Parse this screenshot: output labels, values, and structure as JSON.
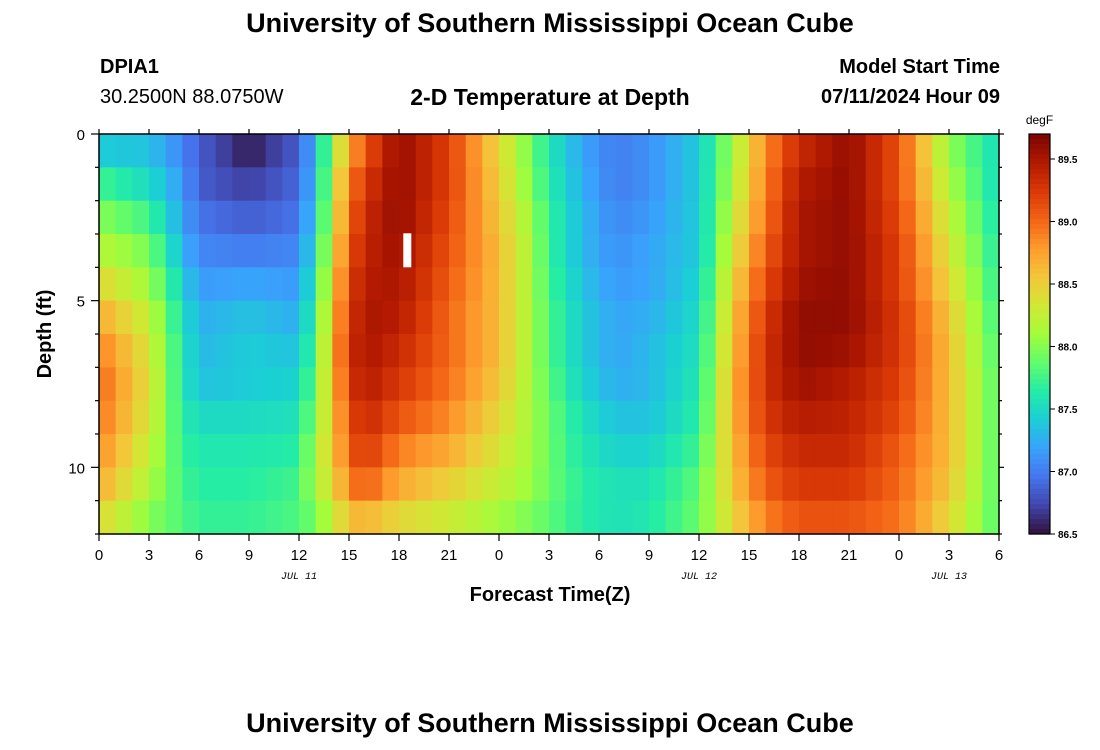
{
  "header": {
    "title": "University of Southern Mississippi Ocean Cube",
    "station_id": "DPIA1",
    "station_coords": "30.2500N  88.0750W",
    "plot_title": "2-D Temperature at Depth",
    "start_label": "Model Start Time",
    "start_value": "07/11/2024 Hour 09"
  },
  "footer": {
    "title": "University of Southern Mississippi Ocean Cube"
  },
  "chart_data": {
    "type": "heatmap",
    "title": "2-D Temperature at Depth",
    "xlabel": "Forecast Time(Z)",
    "ylabel": "Depth (ft)",
    "x_hours": [
      0,
      3,
      6,
      9,
      12,
      15,
      18,
      21,
      24,
      27,
      30,
      33,
      36,
      39,
      42,
      45,
      48,
      51,
      54
    ],
    "x_tick_labels": [
      "0",
      "3",
      "6",
      "9",
      "12",
      "15",
      "18",
      "21",
      "0",
      "3",
      "6",
      "9",
      "12",
      "15",
      "18",
      "21",
      "0",
      "3",
      "6"
    ],
    "date_labels": [
      {
        "label": "JUL 11",
        "hour": 12
      },
      {
        "label": "JUL 12",
        "hour": 36
      },
      {
        "label": "JUL 13",
        "hour": 51
      }
    ],
    "y_depths_ft": [
      0,
      1,
      2,
      3,
      4,
      5,
      6,
      7,
      8,
      9,
      10,
      11,
      12
    ],
    "y_tick_labels": [
      "0",
      "5",
      "10"
    ],
    "y_tick_values": [
      0,
      5,
      10
    ],
    "ylim": [
      0,
      12
    ],
    "xlim": [
      0,
      54
    ],
    "time_columns": [
      0,
      3,
      5,
      6,
      9,
      12,
      13,
      14,
      15,
      16,
      18,
      21,
      24,
      26,
      27,
      29,
      31,
      33,
      36,
      38,
      40,
      42,
      45,
      48,
      51,
      54
    ],
    "temperature_degF": [
      [
        87.2,
        87.3,
        87.0,
        86.9,
        86.5,
        86.8,
        87.3,
        88.0,
        88.6,
        89.0,
        89.6,
        89.2,
        88.4,
        87.9,
        87.6,
        87.2,
        87.0,
        87.1,
        87.4,
        88.1,
        88.8,
        89.3,
        89.6,
        89.1,
        88.0,
        87.5
      ],
      [
        87.6,
        87.4,
        87.1,
        86.8,
        86.6,
        86.9,
        87.3,
        88.2,
        88.8,
        89.2,
        89.6,
        89.2,
        88.5,
        87.9,
        87.6,
        87.2,
        87.0,
        87.1,
        87.4,
        88.1,
        88.9,
        89.4,
        89.6,
        89.1,
        88.1,
        87.5
      ],
      [
        87.9,
        87.6,
        87.2,
        86.9,
        86.8,
        86.9,
        87.4,
        88.2,
        89.0,
        89.3,
        89.6,
        89.2,
        88.5,
        88.0,
        87.7,
        87.3,
        87.0,
        87.1,
        87.4,
        88.2,
        88.9,
        89.5,
        89.6,
        89.1,
        88.2,
        87.5
      ],
      [
        88.1,
        87.9,
        87.2,
        87.0,
        86.9,
        87.0,
        87.5,
        88.3,
        89.0,
        89.4,
        89.6,
        89.1,
        88.6,
        88.1,
        87.7,
        87.3,
        87.1,
        87.2,
        87.4,
        88.3,
        89.0,
        89.5,
        89.6,
        89.2,
        88.3,
        87.6
      ],
      [
        88.3,
        88.0,
        87.4,
        87.1,
        87.1,
        87.1,
        87.6,
        88.4,
        89.2,
        89.4,
        89.5,
        89.1,
        88.6,
        88.1,
        87.7,
        87.3,
        87.1,
        87.2,
        87.4,
        88.4,
        89.1,
        89.5,
        89.6,
        89.2,
        88.4,
        87.6
      ],
      [
        88.6,
        88.2,
        87.5,
        87.2,
        87.3,
        87.2,
        87.7,
        88.5,
        89.2,
        89.5,
        89.5,
        89.0,
        88.6,
        88.1,
        87.8,
        87.4,
        87.2,
        87.2,
        87.5,
        88.5,
        89.2,
        89.6,
        89.6,
        89.2,
        88.5,
        87.7
      ],
      [
        88.8,
        88.3,
        87.6,
        87.3,
        87.4,
        87.3,
        87.8,
        88.6,
        89.3,
        89.5,
        89.4,
        89.0,
        88.6,
        88.1,
        87.8,
        87.4,
        87.2,
        87.3,
        87.5,
        88.6,
        89.3,
        89.6,
        89.6,
        89.3,
        88.6,
        87.7
      ],
      [
        89.0,
        88.4,
        87.6,
        87.3,
        87.4,
        87.4,
        87.9,
        88.6,
        89.3,
        89.5,
        89.3,
        89.0,
        88.6,
        88.1,
        87.8,
        87.4,
        87.2,
        87.3,
        87.6,
        88.6,
        89.3,
        89.6,
        89.5,
        89.2,
        88.6,
        87.8
      ],
      [
        89.0,
        88.4,
        87.6,
        87.4,
        87.4,
        87.5,
        88.0,
        88.5,
        89.2,
        89.4,
        89.2,
        88.9,
        88.5,
        88.1,
        87.9,
        87.5,
        87.3,
        87.3,
        87.6,
        88.7,
        89.3,
        89.5,
        89.4,
        89.2,
        88.6,
        87.8
      ],
      [
        88.9,
        88.3,
        87.7,
        87.6,
        87.6,
        87.6,
        88.1,
        88.5,
        89.1,
        89.3,
        89.0,
        88.8,
        88.4,
        88.1,
        87.9,
        87.6,
        87.4,
        87.4,
        87.7,
        88.6,
        89.2,
        89.4,
        89.4,
        89.1,
        88.6,
        87.8
      ],
      [
        88.8,
        88.2,
        87.7,
        87.6,
        87.6,
        87.7,
        88.2,
        88.5,
        89.0,
        89.2,
        88.8,
        88.6,
        88.3,
        88.1,
        87.9,
        87.6,
        87.5,
        87.5,
        87.8,
        88.6,
        89.1,
        89.3,
        89.3,
        89.0,
        88.6,
        87.8
      ],
      [
        88.6,
        88.1,
        87.8,
        87.7,
        87.7,
        87.8,
        88.1,
        88.3,
        88.8,
        88.9,
        88.6,
        88.4,
        88.2,
        88.0,
        87.9,
        87.7,
        87.6,
        87.6,
        87.9,
        88.5,
        89.0,
        89.2,
        89.2,
        89.0,
        88.5,
        87.8
      ],
      [
        88.3,
        87.9,
        87.8,
        87.7,
        87.7,
        87.8,
        87.8,
        88.2,
        88.4,
        88.4,
        88.3,
        88.2,
        88.0,
        87.9,
        87.8,
        87.6,
        87.5,
        87.6,
        87.9,
        88.4,
        88.8,
        89.0,
        89.0,
        88.9,
        88.4,
        87.8
      ]
    ],
    "colorbar": {
      "unit": "degF",
      "min": 86.5,
      "max": 89.7,
      "tick_values": [
        86.5,
        87.0,
        87.5,
        88.0,
        88.5,
        89.0,
        89.5
      ],
      "tick_labels": [
        "86.5",
        "87.0",
        "87.5",
        "88.0",
        "88.5",
        "89.0",
        "89.5"
      ],
      "colors": [
        "#30123b",
        "#4145ab",
        "#4675ed",
        "#39a2fc",
        "#1bcfd4",
        "#24eca6",
        "#61fc6c",
        "#a4fc3b",
        "#d1e834",
        "#f3c63a",
        "#fe9b2d",
        "#f36315",
        "#d93806",
        "#b11901",
        "#7a0403"
      ]
    },
    "marker": {
      "hour": 18.5,
      "depth_ft": 4
    }
  }
}
